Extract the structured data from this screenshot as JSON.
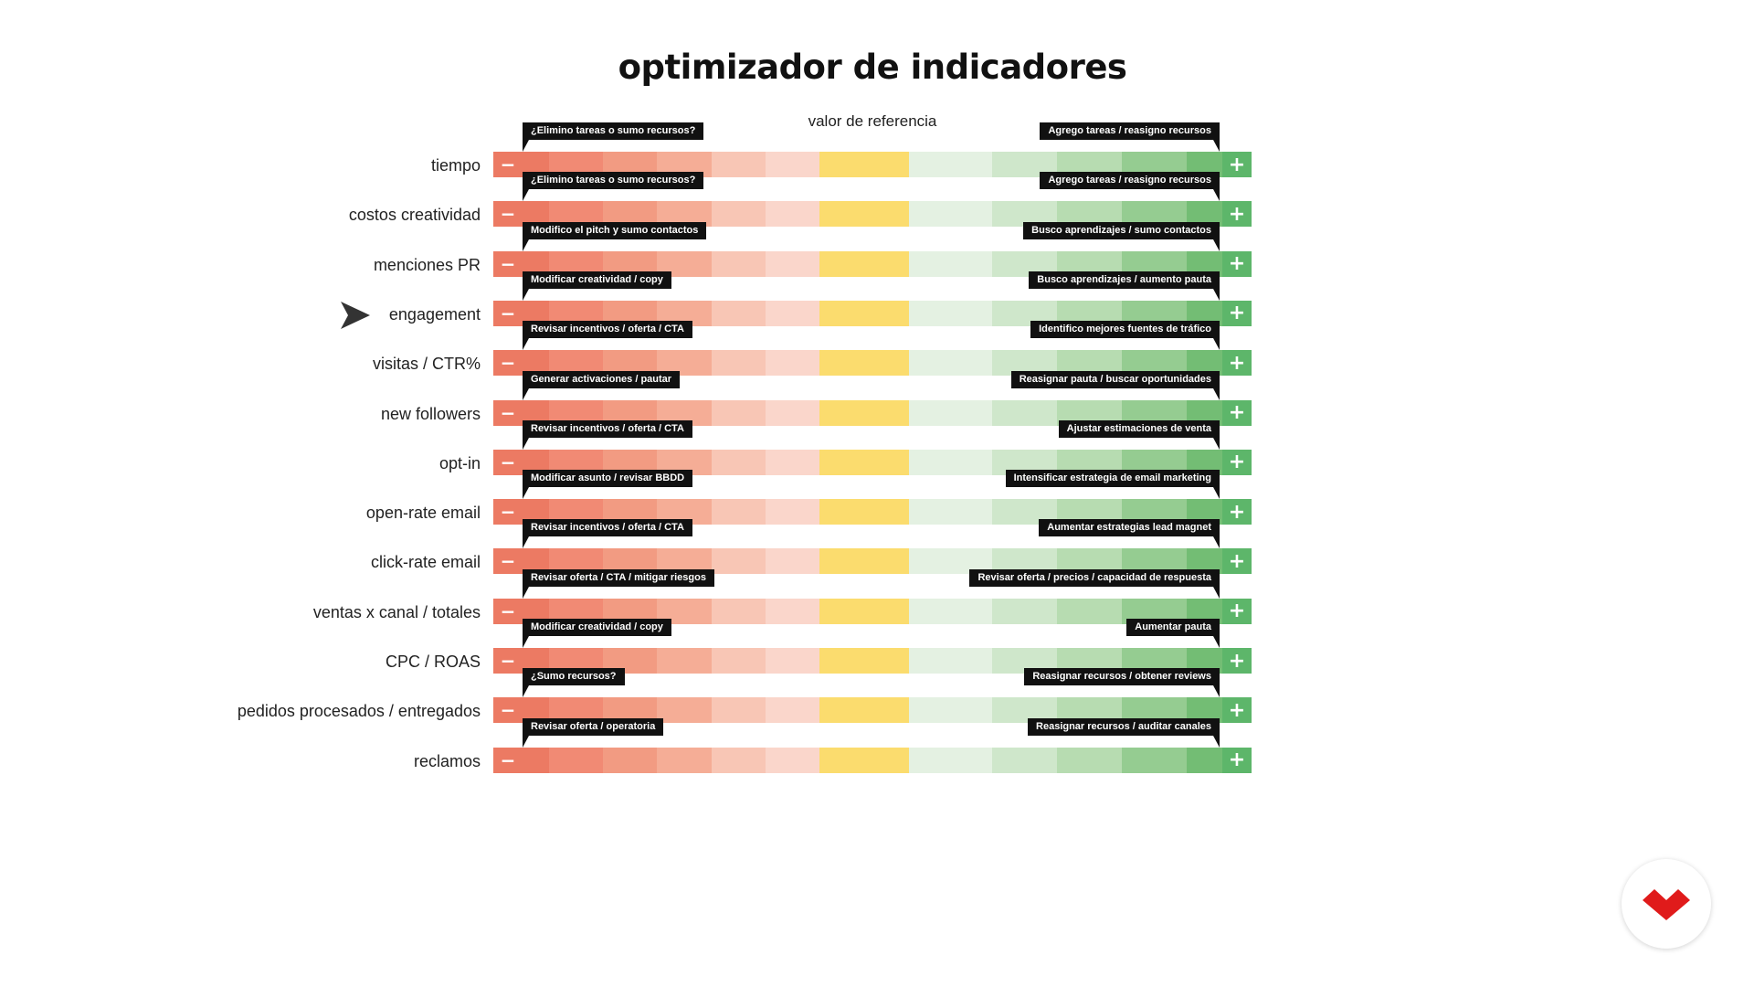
{
  "title": "optimizador de indicadores",
  "reference_label": "valor de referencia",
  "minus_symbol": "−",
  "plus_symbol": "+",
  "scale_colors": [
    "#ec7a63",
    "#f18a74",
    "#f29b82",
    "#f5ad96",
    "#f8c6b5",
    "#fad6cb",
    "#fbdc6e",
    "#fbdc6e",
    "#e4f1e2",
    "#cfe7cb",
    "#b7dcb1",
    "#95cc91",
    "#73bd74",
    "#5db66a"
  ],
  "indicators": [
    {
      "label": "tiempo",
      "low_action": "¿Elimino tareas o sumo recursos?",
      "high_action": "Agrego tareas / reasigno recursos"
    },
    {
      "label": "costos creatividad",
      "low_action": "¿Elimino tareas o sumo recursos?",
      "high_action": "Agrego tareas / reasigno recursos"
    },
    {
      "label": "menciones PR",
      "low_action": "Modifico el pitch y sumo contactos",
      "high_action": "Busco aprendizajes / sumo contactos"
    },
    {
      "label": "engagement",
      "low_action": "Modificar creatividad / copy",
      "high_action": "Busco aprendizajes / aumento pauta",
      "selected": true
    },
    {
      "label": "visitas / CTR%",
      "low_action": "Revisar incentivos / oferta / CTA",
      "high_action": "Identifico mejores fuentes de tráfico"
    },
    {
      "label": "new followers",
      "low_action": "Generar activaciones / pautar",
      "high_action": "Reasignar pauta / buscar oportunidades"
    },
    {
      "label": "opt-in",
      "low_action": "Revisar incentivos / oferta / CTA",
      "high_action": "Ajustar estimaciones de venta"
    },
    {
      "label": "open-rate email",
      "low_action": "Modificar asunto / revisar BBDD",
      "high_action": "Intensificar estrategia de email marketing"
    },
    {
      "label": "click-rate email",
      "low_action": "Revisar incentivos / oferta / CTA",
      "high_action": "Aumentar estrategias lead magnet"
    },
    {
      "label": "ventas x canal / totales",
      "low_action": "Revisar oferta / CTA / mitigar riesgos",
      "high_action": "Revisar oferta / precios / capacidad de respuesta"
    },
    {
      "label": "CPC / ROAS",
      "low_action": "Modificar creatividad / copy",
      "high_action": "Aumentar pauta"
    },
    {
      "label": "pedidos procesados / entregados",
      "low_action": "¿Sumo recursos?",
      "high_action": "Reasignar recursos / obtener reviews"
    },
    {
      "label": "reclamos",
      "low_action": "Revisar oferta / operatoria",
      "high_action": "Reasignar recursos / auditar canales"
    }
  ],
  "icons": {
    "pointer": "arrow-pointer-icon",
    "logo": "brand-logo-icon"
  }
}
